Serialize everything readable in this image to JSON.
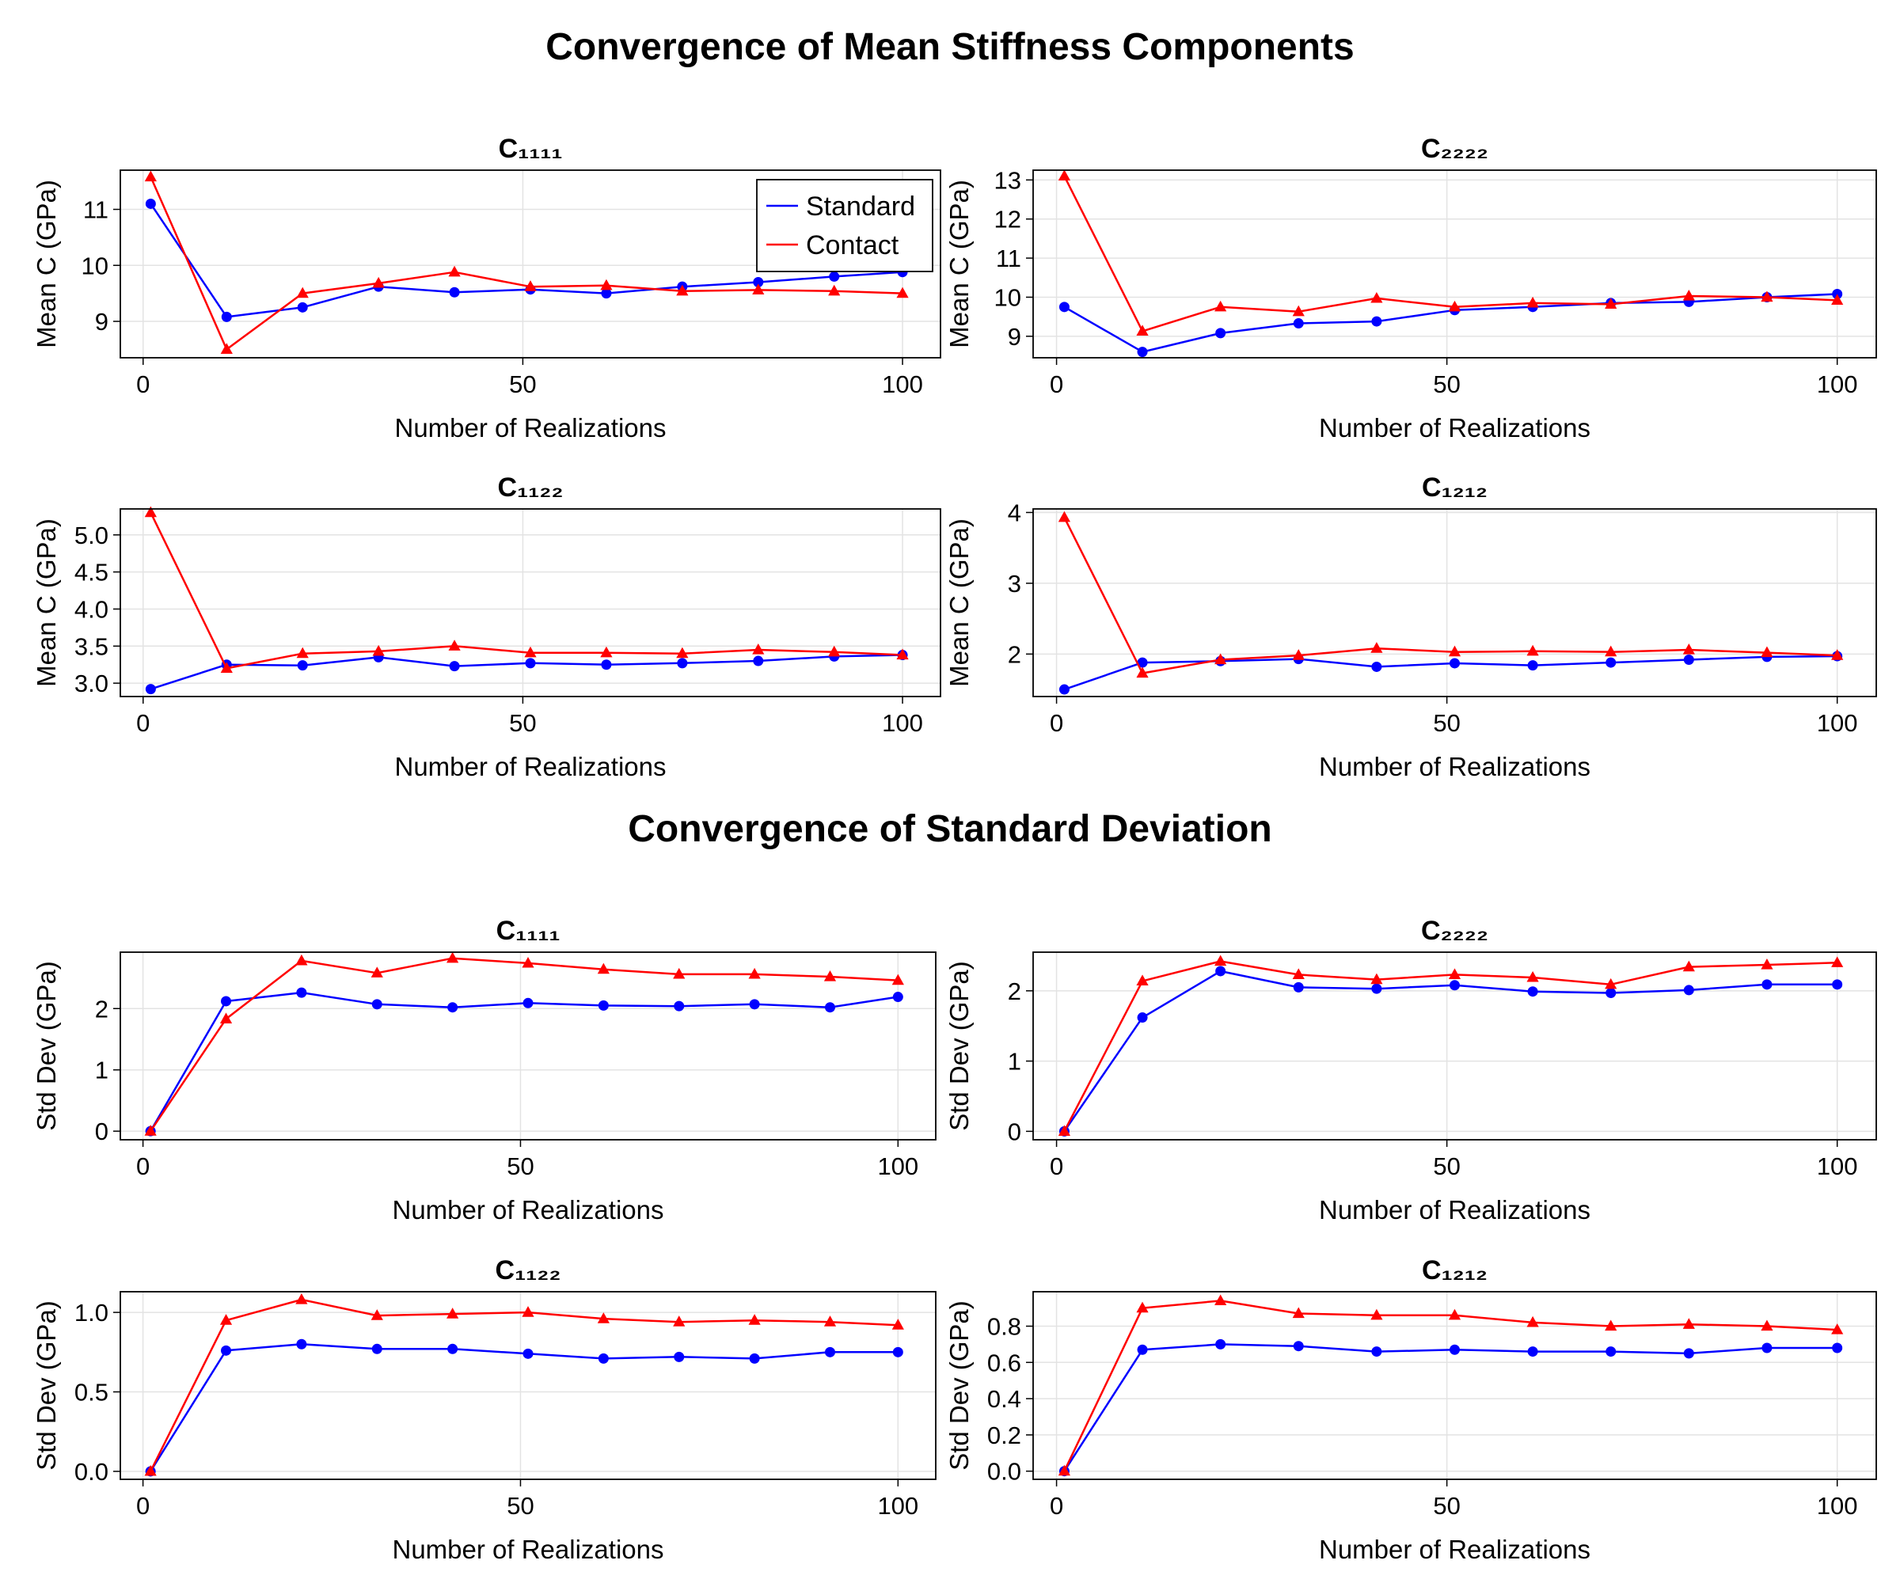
{
  "figure": {
    "titles": [
      "Convergence of Mean Stiffness Components",
      "Convergence of Standard Deviation"
    ]
  },
  "legend": {
    "placement": "top-right",
    "entries": [
      "Standard",
      "Contact"
    ]
  },
  "colors": {
    "standard": "#0000ff",
    "contact": "#ff0000",
    "grid": "#e3e3e3",
    "frame": "#000000"
  },
  "chart_data": [
    {
      "type": "line",
      "section": "Convergence of Mean Stiffness Components",
      "title": "C₁₁₁₁",
      "xlabel": "Number of Realizations",
      "ylabel": "Mean C (GPa)",
      "xlim": [
        -3,
        105
      ],
      "ylim": [
        8.35,
        11.7
      ],
      "xticks": [
        0,
        50,
        100
      ],
      "yticks": [
        9,
        10,
        11
      ],
      "grid": true,
      "legend": true,
      "x": [
        1,
        11,
        21,
        31,
        41,
        51,
        61,
        71,
        81,
        91,
        100
      ],
      "series": [
        {
          "name": "Standard",
          "marker": "circle",
          "values": [
            11.1,
            9.08,
            9.25,
            9.62,
            9.52,
            9.57,
            9.5,
            9.62,
            9.7,
            9.8,
            9.88
          ]
        },
        {
          "name": "Contact",
          "marker": "triangle",
          "values": [
            11.58,
            8.5,
            9.5,
            9.68,
            9.88,
            9.62,
            9.64,
            9.54,
            9.56,
            9.54,
            9.5
          ]
        }
      ]
    },
    {
      "type": "line",
      "section": "Convergence of Mean Stiffness Components",
      "title": "C₂₂₂₂",
      "xlabel": "Number of Realizations",
      "ylabel": "Mean C (GPa)",
      "xlim": [
        -3,
        105
      ],
      "ylim": [
        8.45,
        13.25
      ],
      "xticks": [
        0,
        50,
        100
      ],
      "yticks": [
        9,
        10,
        11,
        12,
        13
      ],
      "grid": true,
      "legend": false,
      "x": [
        1,
        11,
        21,
        31,
        41,
        51,
        61,
        71,
        81,
        91,
        100
      ],
      "series": [
        {
          "name": "Standard",
          "marker": "circle",
          "values": [
            9.75,
            8.6,
            9.08,
            9.33,
            9.38,
            9.67,
            9.75,
            9.85,
            9.88,
            10.0,
            10.08
          ]
        },
        {
          "name": "Contact",
          "marker": "triangle",
          "values": [
            13.1,
            9.13,
            9.75,
            9.63,
            9.97,
            9.75,
            9.85,
            9.82,
            10.03,
            10.0,
            9.92
          ]
        }
      ]
    },
    {
      "type": "line",
      "section": "Convergence of Mean Stiffness Components",
      "title": "C₁₁₂₂",
      "xlabel": "Number of Realizations",
      "ylabel": "Mean C (GPa)",
      "xlim": [
        -3,
        105
      ],
      "ylim": [
        2.82,
        5.35
      ],
      "xticks": [
        0,
        50,
        100
      ],
      "yticks": [
        3.0,
        3.5,
        4.0,
        4.5,
        5.0
      ],
      "grid": true,
      "legend": false,
      "x": [
        1,
        11,
        21,
        31,
        41,
        51,
        61,
        71,
        81,
        91,
        100
      ],
      "series": [
        {
          "name": "Standard",
          "marker": "circle",
          "values": [
            2.92,
            3.25,
            3.24,
            3.35,
            3.23,
            3.27,
            3.25,
            3.27,
            3.3,
            3.36,
            3.38
          ]
        },
        {
          "name": "Contact",
          "marker": "triangle",
          "values": [
            5.3,
            3.2,
            3.4,
            3.43,
            3.5,
            3.41,
            3.41,
            3.4,
            3.45,
            3.42,
            3.38
          ]
        }
      ]
    },
    {
      "type": "line",
      "section": "Convergence of Mean Stiffness Components",
      "title": "C₁₂₁₂",
      "xlabel": "Number of Realizations",
      "ylabel": "Mean C (GPa)",
      "xlim": [
        -3,
        105
      ],
      "ylim": [
        1.4,
        4.05
      ],
      "xticks": [
        0,
        50,
        100
      ],
      "yticks": [
        2,
        3,
        4
      ],
      "grid": true,
      "legend": false,
      "x": [
        1,
        11,
        21,
        31,
        41,
        51,
        61,
        71,
        81,
        91,
        100
      ],
      "series": [
        {
          "name": "Standard",
          "marker": "circle",
          "values": [
            1.5,
            1.88,
            1.9,
            1.93,
            1.82,
            1.87,
            1.84,
            1.88,
            1.92,
            1.96,
            1.97
          ]
        },
        {
          "name": "Contact",
          "marker": "triangle",
          "values": [
            3.93,
            1.73,
            1.92,
            1.98,
            2.08,
            2.03,
            2.04,
            2.03,
            2.06,
            2.02,
            1.98
          ]
        }
      ]
    },
    {
      "type": "line",
      "section": "Convergence of Standard Deviation",
      "title": "C₁₁₁₁",
      "xlabel": "Number of Realizations",
      "ylabel": "Std Dev (GPa)",
      "xlim": [
        -3,
        105
      ],
      "ylim": [
        -0.14,
        2.92
      ],
      "xticks": [
        0,
        50,
        100
      ],
      "yticks": [
        0,
        1,
        2
      ],
      "grid": true,
      "legend": false,
      "x": [
        1,
        11,
        21,
        31,
        41,
        51,
        61,
        71,
        81,
        91,
        100
      ],
      "series": [
        {
          "name": "Standard",
          "marker": "circle",
          "values": [
            0.0,
            2.12,
            2.26,
            2.07,
            2.02,
            2.09,
            2.05,
            2.04,
            2.07,
            2.02,
            2.19
          ]
        },
        {
          "name": "Contact",
          "marker": "triangle",
          "values": [
            0.0,
            1.83,
            2.78,
            2.58,
            2.82,
            2.74,
            2.64,
            2.56,
            2.56,
            2.52,
            2.46
          ]
        }
      ]
    },
    {
      "type": "line",
      "section": "Convergence of Standard Deviation",
      "title": "C₂₂₂₂",
      "xlabel": "Number of Realizations",
      "ylabel": "Std Dev (GPa)",
      "xlim": [
        -3,
        105
      ],
      "ylim": [
        -0.12,
        2.55
      ],
      "xticks": [
        0,
        50,
        100
      ],
      "yticks": [
        0,
        1,
        2
      ],
      "grid": true,
      "legend": false,
      "x": [
        1,
        11,
        21,
        31,
        41,
        51,
        61,
        71,
        81,
        91,
        100
      ],
      "series": [
        {
          "name": "Standard",
          "marker": "circle",
          "values": [
            0.0,
            1.62,
            2.28,
            2.05,
            2.03,
            2.08,
            1.99,
            1.97,
            2.01,
            2.09,
            2.09
          ]
        },
        {
          "name": "Contact",
          "marker": "triangle",
          "values": [
            0.0,
            2.14,
            2.42,
            2.23,
            2.16,
            2.23,
            2.19,
            2.09,
            2.34,
            2.37,
            2.4
          ]
        }
      ]
    },
    {
      "type": "line",
      "section": "Convergence of Standard Deviation",
      "title": "C₁₁₂₂",
      "xlabel": "Number of Realizations",
      "ylabel": "Std Dev (GPa)",
      "xlim": [
        -3,
        105
      ],
      "ylim": [
        -0.05,
        1.13
      ],
      "xticks": [
        0,
        50,
        100
      ],
      "yticks": [
        0.0,
        0.5,
        1.0
      ],
      "grid": true,
      "legend": false,
      "x": [
        1,
        11,
        21,
        31,
        41,
        51,
        61,
        71,
        81,
        91,
        100
      ],
      "series": [
        {
          "name": "Standard",
          "marker": "circle",
          "values": [
            0.0,
            0.76,
            0.8,
            0.77,
            0.77,
            0.74,
            0.71,
            0.72,
            0.71,
            0.75,
            0.75
          ]
        },
        {
          "name": "Contact",
          "marker": "triangle",
          "values": [
            0.0,
            0.95,
            1.08,
            0.98,
            0.99,
            1.0,
            0.96,
            0.94,
            0.95,
            0.94,
            0.92
          ]
        }
      ]
    },
    {
      "type": "line",
      "section": "Convergence of Standard Deviation",
      "title": "C₁₂₁₂",
      "xlabel": "Number of Realizations",
      "ylabel": "Std Dev (GPa)",
      "xlim": [
        -3,
        105
      ],
      "ylim": [
        -0.045,
        0.99
      ],
      "xticks": [
        0,
        50,
        100
      ],
      "yticks": [
        0.0,
        0.2,
        0.4,
        0.6,
        0.8
      ],
      "grid": true,
      "legend": false,
      "x": [
        1,
        11,
        21,
        31,
        41,
        51,
        61,
        71,
        81,
        91,
        100
      ],
      "series": [
        {
          "name": "Standard",
          "marker": "circle",
          "values": [
            0.0,
            0.67,
            0.7,
            0.69,
            0.66,
            0.67,
            0.66,
            0.66,
            0.65,
            0.68,
            0.68
          ]
        },
        {
          "name": "Contact",
          "marker": "triangle",
          "values": [
            0.0,
            0.9,
            0.94,
            0.87,
            0.86,
            0.86,
            0.82,
            0.8,
            0.81,
            0.8,
            0.78
          ]
        }
      ]
    }
  ]
}
